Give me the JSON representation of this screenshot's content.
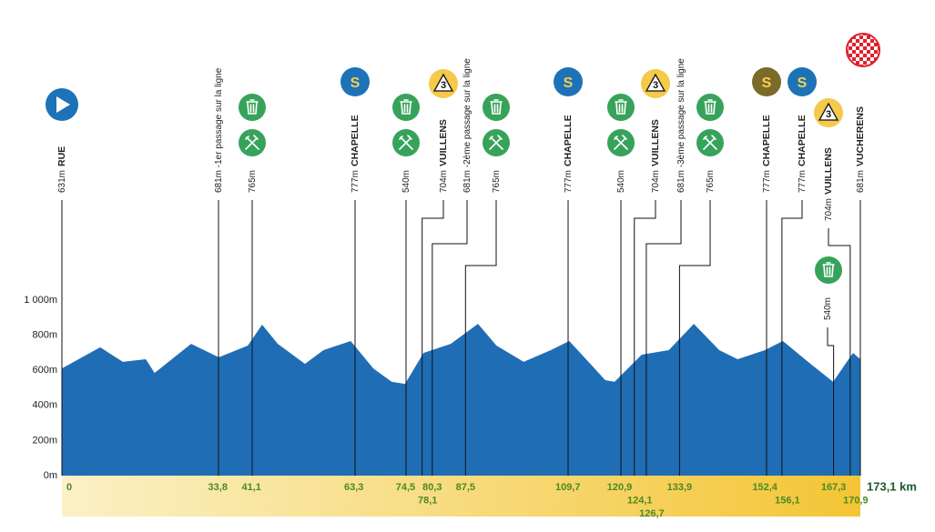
{
  "chart_data": {
    "type": "area",
    "color": "#1f6db5",
    "x": [
      0,
      8.3,
      13.2,
      18.2,
      20.1,
      28.0,
      34.0,
      40.3,
      43.4,
      46.8,
      52.7,
      56.7,
      62.6,
      67.5,
      71.5,
      74.4,
      78.4,
      84.3,
      90.2,
      94.2,
      100.1,
      106.0,
      110.0,
      117.8,
      119.8,
      125.7,
      131.6,
      137.0,
      142.5,
      146.5,
      152.4,
      156.3,
      162.3,
      167.2,
      171.5,
      173.1
    ],
    "values": [
      611,
      731,
      648,
      663,
      585,
      751,
      674,
      741,
      860,
      751,
      637,
      715,
      767,
      611,
      534,
      523,
      699,
      751,
      865,
      741,
      648,
      715,
      767,
      544,
      534,
      689,
      715,
      865,
      715,
      663,
      715,
      767,
      637,
      534,
      699,
      663
    ],
    "xlim": [
      0,
      173.1
    ],
    "ylim": [
      0,
      1000
    ],
    "yticks": [
      {
        "value": 0,
        "label": "0m"
      },
      {
        "value": 200,
        "label": "200m"
      },
      {
        "value": 400,
        "label": "400m"
      },
      {
        "value": 600,
        "label": "600m"
      },
      {
        "value": 800,
        "label": "800m"
      },
      {
        "value": 1000,
        "label": "1 000m"
      }
    ],
    "points_of_interest": [
      {
        "km": 0,
        "km_label": "0",
        "label": "631m",
        "name": "RUE"
      },
      {
        "km": 33.8,
        "km_label": "33,8",
        "label": "681m -1er passage sur la ligne"
      },
      {
        "km": 41.1,
        "km_label": "41,1",
        "label": "765m"
      },
      {
        "km": 63.3,
        "km_label": "63,3",
        "label": "777m",
        "name": "CHAPELLE",
        "badge": "S",
        "badge_color": "#1d72b8"
      },
      {
        "km": 74.5,
        "km_label": "74,5",
        "label": "540m"
      },
      {
        "km": 78.1,
        "km_label": "78,1",
        "label": "704m",
        "name": "VUILLENS",
        "badge": "3",
        "badge_color": "#f5c94a"
      },
      {
        "km": 80.3,
        "km_label": "80,3",
        "label": "681m -2ème passage sur la ligne"
      },
      {
        "km": 87.5,
        "km_label": "87,5",
        "label": "765m"
      },
      {
        "km": 109.7,
        "km_label": "109,7",
        "label": "777m",
        "name": "CHAPELLE",
        "badge": "S",
        "badge_color": "#1d72b8"
      },
      {
        "km": 120.9,
        "km_label": "120,9",
        "label": "540m"
      },
      {
        "km": 124.1,
        "km_label": "124,1",
        "label": "704m",
        "name": "VUILLENS",
        "badge": "3",
        "badge_color": "#f5c94a"
      },
      {
        "km": 126.7,
        "km_label": "126,7",
        "label": "681m -3ème passage sur la ligne"
      },
      {
        "km": 133.9,
        "km_label": "133,9",
        "label": "765m"
      },
      {
        "km": 152.4,
        "km_label": "152,4",
        "label": "777m",
        "name": "CHAPELLE",
        "badge": "S",
        "badge_color": "#7b6a2a"
      },
      {
        "km": 156.1,
        "km_label": "156,1",
        "label": "777m",
        "name": "CHAPELLE",
        "badge": "S",
        "badge_color": "#1d72b8"
      },
      {
        "km": 167.3,
        "km_label": "167,3",
        "label": "540m"
      },
      {
        "km": 170.9,
        "km_label": "170,9",
        "label": "704m",
        "name": "VUILLENS",
        "badge": "3",
        "badge_color": "#f5c94a"
      },
      {
        "km": 173.1,
        "km_label": "173,1 km",
        "label": "681m",
        "name": "VUCHERENS"
      }
    ]
  }
}
